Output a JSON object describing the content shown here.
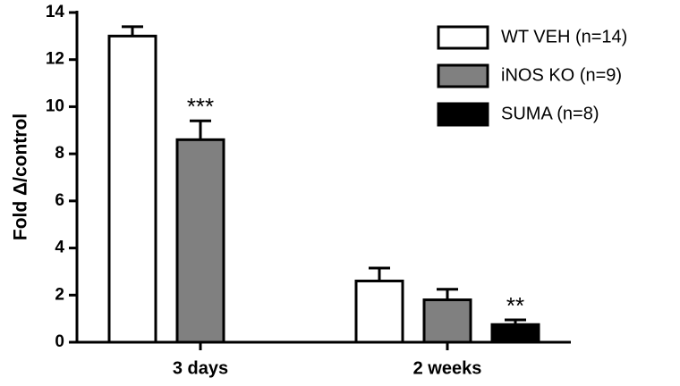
{
  "chart_data": {
    "type": "bar",
    "y_label": "Fold Δ/control",
    "categories": [
      "3 days",
      "2 weeks"
    ],
    "series": [
      {
        "name": "WT VEH (n=14)",
        "color": "#ffffff",
        "values": [
          13,
          2.6
        ],
        "errors": [
          0.4,
          0.55
        ]
      },
      {
        "name": "iNOS KO (n=9)",
        "color": "#808080",
        "values": [
          8.6,
          1.8
        ],
        "errors": [
          0.8,
          0.45
        ]
      },
      {
        "name": "SUMA (n=8)",
        "color": "#000000",
        "values": [
          null,
          0.75
        ],
        "errors": [
          null,
          0.2
        ]
      }
    ],
    "annotations": [
      "***",
      "**"
    ],
    "ylim": [
      0,
      14
    ],
    "yticks": [
      0,
      2,
      4,
      6,
      8,
      10,
      12,
      14
    ],
    "legend": "upper right"
  }
}
